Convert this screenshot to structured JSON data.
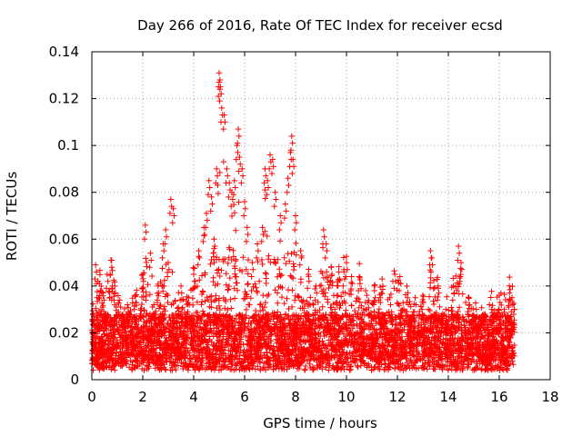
{
  "chart_data": {
    "type": "scatter",
    "title": "Day 266 of 2016, Rate Of TEC Index for receiver ecsd",
    "xlabel": "GPS time / hours",
    "ylabel": "ROTI / TECUs",
    "xlim": [
      0,
      18
    ],
    "ylim": [
      0,
      0.14
    ],
    "xticks": [
      0,
      2,
      4,
      6,
      8,
      10,
      12,
      14,
      16,
      18
    ],
    "xtick_labels": [
      "0",
      "2",
      "4",
      "6",
      "8",
      "10",
      "12",
      "14",
      "16",
      "18"
    ],
    "yticks": [
      0,
      0.02,
      0.04,
      0.06,
      0.08,
      0.1,
      0.12,
      0.14
    ],
    "ytick_labels": [
      "0",
      "0.02",
      "0.04",
      "0.06",
      "0.08",
      "0.1",
      "0.12",
      "0.14"
    ],
    "grid": true,
    "marker": "+",
    "color": "#ff0000",
    "data_x_range": [
      0,
      16.6
    ],
    "series": [
      {
        "name": "ROTI",
        "x": [
          0.15,
          0.3,
          0.45,
          0.6,
          0.75,
          0.9,
          1.1,
          1.4,
          1.7,
          2.0,
          2.1,
          2.3,
          2.6,
          2.8,
          2.9,
          3.0,
          3.1,
          3.2,
          3.5,
          3.8,
          4.0,
          4.2,
          4.4,
          4.5,
          4.6,
          4.7,
          4.8,
          4.9,
          5.0,
          5.0,
          5.05,
          5.1,
          5.2,
          5.3,
          5.4,
          5.5,
          5.6,
          5.7,
          5.75,
          5.8,
          5.9,
          6.0,
          6.1,
          6.3,
          6.5,
          6.7,
          6.8,
          6.9,
          7.0,
          7.1,
          7.2,
          7.4,
          7.6,
          7.7,
          7.8,
          7.85,
          7.9,
          8.0,
          8.2,
          8.5,
          8.8,
          9.1,
          9.2,
          9.4,
          9.7,
          9.9,
          10.0,
          10.2,
          10.5,
          10.8,
          11.1,
          11.4,
          11.7,
          11.9,
          12.1,
          12.4,
          12.7,
          13.0,
          13.3,
          13.35,
          13.6,
          13.9,
          14.2,
          14.4,
          14.5,
          14.8,
          15.1,
          15.4,
          15.7,
          16.0,
          16.2,
          16.4,
          16.5
        ],
        "y": [
          0.049,
          0.041,
          0.037,
          0.045,
          0.051,
          0.04,
          0.034,
          0.032,
          0.036,
          0.045,
          0.066,
          0.054,
          0.04,
          0.058,
          0.064,
          0.05,
          0.077,
          0.073,
          0.04,
          0.035,
          0.045,
          0.055,
          0.065,
          0.071,
          0.085,
          0.078,
          0.06,
          0.09,
          0.131,
          0.127,
          0.125,
          0.116,
          0.113,
          0.09,
          0.084,
          0.08,
          0.085,
          0.1,
          0.107,
          0.095,
          0.09,
          0.076,
          0.065,
          0.05,
          0.058,
          0.065,
          0.09,
          0.085,
          0.096,
          0.094,
          0.08,
          0.07,
          0.075,
          0.086,
          0.097,
          0.104,
          0.094,
          0.07,
          0.055,
          0.045,
          0.04,
          0.064,
          0.058,
          0.048,
          0.046,
          0.046,
          0.05,
          0.044,
          0.044,
          0.036,
          0.038,
          0.043,
          0.035,
          0.045,
          0.044,
          0.035,
          0.035,
          0.036,
          0.055,
          0.052,
          0.04,
          0.03,
          0.04,
          0.057,
          0.05,
          0.035,
          0.03,
          0.028,
          0.03,
          0.036,
          0.03,
          0.037,
          0.035
        ]
      }
    ]
  }
}
